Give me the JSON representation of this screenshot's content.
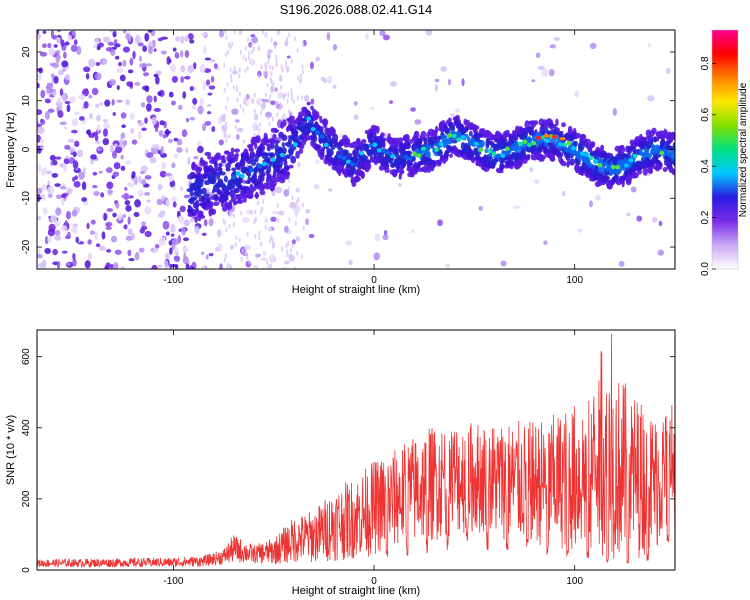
{
  "title": "S196.2026.088.02.41.G14",
  "chart_data": [
    {
      "type": "heatmap",
      "name": "spectrogram",
      "xlabel": "Height of straight line (km)",
      "ylabel": "Frequency (Hz)",
      "xlim": [
        -168,
        150
      ],
      "ylim": [
        -24.5,
        24.5
      ],
      "xticks": [
        -100,
        0,
        100
      ],
      "yticks": [
        -20,
        -10,
        0,
        10,
        20
      ],
      "ridge": {
        "x": [
          -90,
          -80,
          -70,
          -60,
          -50,
          -40,
          -33,
          -28,
          -20,
          -10,
          0,
          10,
          20,
          30,
          40,
          50,
          60,
          70,
          80,
          90,
          100,
          110,
          120,
          130,
          140,
          150
        ],
        "freq": [
          -9,
          -7,
          -6,
          -4,
          -2,
          1,
          6,
          3,
          0,
          -3,
          1,
          -2,
          -1,
          0,
          3,
          1,
          -1,
          0,
          2,
          2,
          0,
          -3,
          -4,
          -2,
          0,
          -1
        ]
      },
      "colorbar": {
        "label": "Normalized spectral amplitude",
        "range": [
          0,
          0.93
        ],
        "ticks": [
          "0.0",
          "0.2",
          "0.4",
          "0.6",
          "0.8"
        ],
        "tick_values": [
          0,
          0.2,
          0.4,
          0.6,
          0.8
        ],
        "colors": [
          "#ffffff",
          "#c8aaf5",
          "#7a2ce8",
          "#2a1ae0",
          "#00c8ff",
          "#00e080",
          "#80e000",
          "#ffe800",
          "#ff8000",
          "#ff0000",
          "#ff0090"
        ]
      }
    },
    {
      "type": "line",
      "name": "snr",
      "xlabel": "Height of straight line (km)",
      "ylabel": "SNR (10 * v/v)",
      "xlim": [
        -168,
        150
      ],
      "ylim": [
        0,
        675
      ],
      "xticks": [
        -100,
        0,
        100
      ],
      "yticks": [
        0,
        200,
        400,
        600
      ],
      "color": "#ee3333",
      "envelope": {
        "x": [
          -168,
          -100,
          -85,
          -75,
          -70,
          -60,
          -50,
          -40,
          -30,
          -20,
          -10,
          0,
          10,
          20,
          30,
          40,
          50,
          60,
          70,
          80,
          90,
          100,
          110,
          120,
          130,
          140,
          150
        ],
        "low": [
          8,
          8,
          10,
          15,
          20,
          18,
          15,
          20,
          20,
          25,
          30,
          40,
          60,
          70,
          80,
          100,
          100,
          90,
          80,
          70,
          60,
          50,
          40,
          30,
          30,
          50,
          120
        ],
        "high": [
          30,
          35,
          40,
          60,
          100,
          70,
          90,
          150,
          170,
          230,
          260,
          310,
          340,
          380,
          410,
          420,
          420,
          420,
          420,
          420,
          440,
          470,
          530,
          560,
          500,
          440,
          480
        ]
      }
    }
  ]
}
